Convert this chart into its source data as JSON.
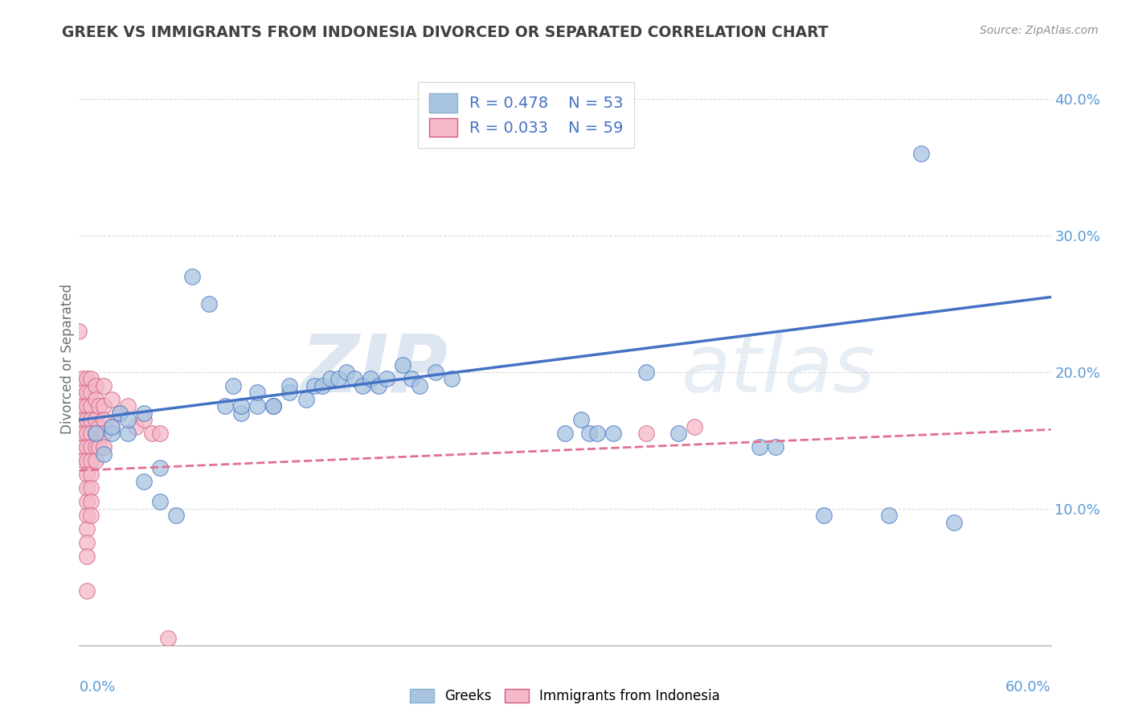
{
  "title": "GREEK VS IMMIGRANTS FROM INDONESIA DIVORCED OR SEPARATED CORRELATION CHART",
  "source_text": "Source: ZipAtlas.com",
  "ylabel": "Divorced or Separated",
  "xlim": [
    0.0,
    0.6
  ],
  "ylim": [
    0.0,
    0.42
  ],
  "ytick_positions": [
    0.1,
    0.2,
    0.3,
    0.4
  ],
  "ytick_labels": [
    "10.0%",
    "20.0%",
    "30.0%",
    "40.0%"
  ],
  "R_greek": 0.478,
  "N_greek": 53,
  "R_indonesia": 0.033,
  "N_indonesia": 59,
  "greek_color": "#a8c4e0",
  "indonesia_color": "#f4b8c8",
  "greek_line_color": "#4472c4",
  "indonesia_line_color": "#e07090",
  "greek_scatter": [
    [
      0.01,
      0.155
    ],
    [
      0.015,
      0.14
    ],
    [
      0.02,
      0.155
    ],
    [
      0.02,
      0.16
    ],
    [
      0.025,
      0.17
    ],
    [
      0.03,
      0.155
    ],
    [
      0.03,
      0.165
    ],
    [
      0.04,
      0.17
    ],
    [
      0.04,
      0.12
    ],
    [
      0.05,
      0.13
    ],
    [
      0.05,
      0.105
    ],
    [
      0.06,
      0.095
    ],
    [
      0.07,
      0.27
    ],
    [
      0.08,
      0.25
    ],
    [
      0.09,
      0.175
    ],
    [
      0.095,
      0.19
    ],
    [
      0.1,
      0.17
    ],
    [
      0.1,
      0.175
    ],
    [
      0.11,
      0.175
    ],
    [
      0.11,
      0.185
    ],
    [
      0.12,
      0.175
    ],
    [
      0.12,
      0.175
    ],
    [
      0.13,
      0.185
    ],
    [
      0.13,
      0.19
    ],
    [
      0.14,
      0.18
    ],
    [
      0.145,
      0.19
    ],
    [
      0.15,
      0.19
    ],
    [
      0.155,
      0.195
    ],
    [
      0.16,
      0.195
    ],
    [
      0.165,
      0.2
    ],
    [
      0.17,
      0.195
    ],
    [
      0.175,
      0.19
    ],
    [
      0.18,
      0.195
    ],
    [
      0.185,
      0.19
    ],
    [
      0.19,
      0.195
    ],
    [
      0.2,
      0.205
    ],
    [
      0.205,
      0.195
    ],
    [
      0.21,
      0.19
    ],
    [
      0.22,
      0.2
    ],
    [
      0.23,
      0.195
    ],
    [
      0.3,
      0.155
    ],
    [
      0.31,
      0.165
    ],
    [
      0.315,
      0.155
    ],
    [
      0.32,
      0.155
    ],
    [
      0.33,
      0.155
    ],
    [
      0.35,
      0.2
    ],
    [
      0.37,
      0.155
    ],
    [
      0.42,
      0.145
    ],
    [
      0.43,
      0.145
    ],
    [
      0.46,
      0.095
    ],
    [
      0.5,
      0.095
    ],
    [
      0.52,
      0.36
    ],
    [
      0.54,
      0.09
    ]
  ],
  "indonesia_scatter": [
    [
      0.0,
      0.23
    ],
    [
      0.002,
      0.195
    ],
    [
      0.002,
      0.185
    ],
    [
      0.003,
      0.175
    ],
    [
      0.003,
      0.165
    ],
    [
      0.003,
      0.155
    ],
    [
      0.003,
      0.145
    ],
    [
      0.003,
      0.135
    ],
    [
      0.005,
      0.195
    ],
    [
      0.005,
      0.185
    ],
    [
      0.005,
      0.175
    ],
    [
      0.005,
      0.165
    ],
    [
      0.005,
      0.155
    ],
    [
      0.005,
      0.145
    ],
    [
      0.005,
      0.135
    ],
    [
      0.005,
      0.125
    ],
    [
      0.005,
      0.115
    ],
    [
      0.005,
      0.105
    ],
    [
      0.005,
      0.095
    ],
    [
      0.005,
      0.085
    ],
    [
      0.005,
      0.075
    ],
    [
      0.005,
      0.065
    ],
    [
      0.005,
      0.04
    ],
    [
      0.007,
      0.195
    ],
    [
      0.007,
      0.185
    ],
    [
      0.007,
      0.175
    ],
    [
      0.007,
      0.165
    ],
    [
      0.007,
      0.155
    ],
    [
      0.007,
      0.145
    ],
    [
      0.007,
      0.135
    ],
    [
      0.007,
      0.125
    ],
    [
      0.007,
      0.115
    ],
    [
      0.007,
      0.105
    ],
    [
      0.007,
      0.095
    ],
    [
      0.01,
      0.19
    ],
    [
      0.01,
      0.18
    ],
    [
      0.01,
      0.165
    ],
    [
      0.01,
      0.155
    ],
    [
      0.01,
      0.145
    ],
    [
      0.01,
      0.135
    ],
    [
      0.012,
      0.175
    ],
    [
      0.012,
      0.16
    ],
    [
      0.012,
      0.145
    ],
    [
      0.015,
      0.19
    ],
    [
      0.015,
      0.175
    ],
    [
      0.015,
      0.165
    ],
    [
      0.015,
      0.155
    ],
    [
      0.015,
      0.145
    ],
    [
      0.02,
      0.18
    ],
    [
      0.02,
      0.16
    ],
    [
      0.025,
      0.17
    ],
    [
      0.03,
      0.175
    ],
    [
      0.035,
      0.16
    ],
    [
      0.04,
      0.165
    ],
    [
      0.045,
      0.155
    ],
    [
      0.05,
      0.155
    ],
    [
      0.055,
      0.005
    ],
    [
      0.35,
      0.155
    ],
    [
      0.38,
      0.16
    ]
  ],
  "greek_trendline": [
    [
      0.0,
      0.165
    ],
    [
      0.6,
      0.255
    ]
  ],
  "indonesia_trendline": [
    [
      0.0,
      0.128
    ],
    [
      0.6,
      0.158
    ]
  ],
  "background_color": "#ffffff",
  "grid_color": "#cccccc",
  "title_color": "#404040",
  "axis_label_color": "#707070"
}
